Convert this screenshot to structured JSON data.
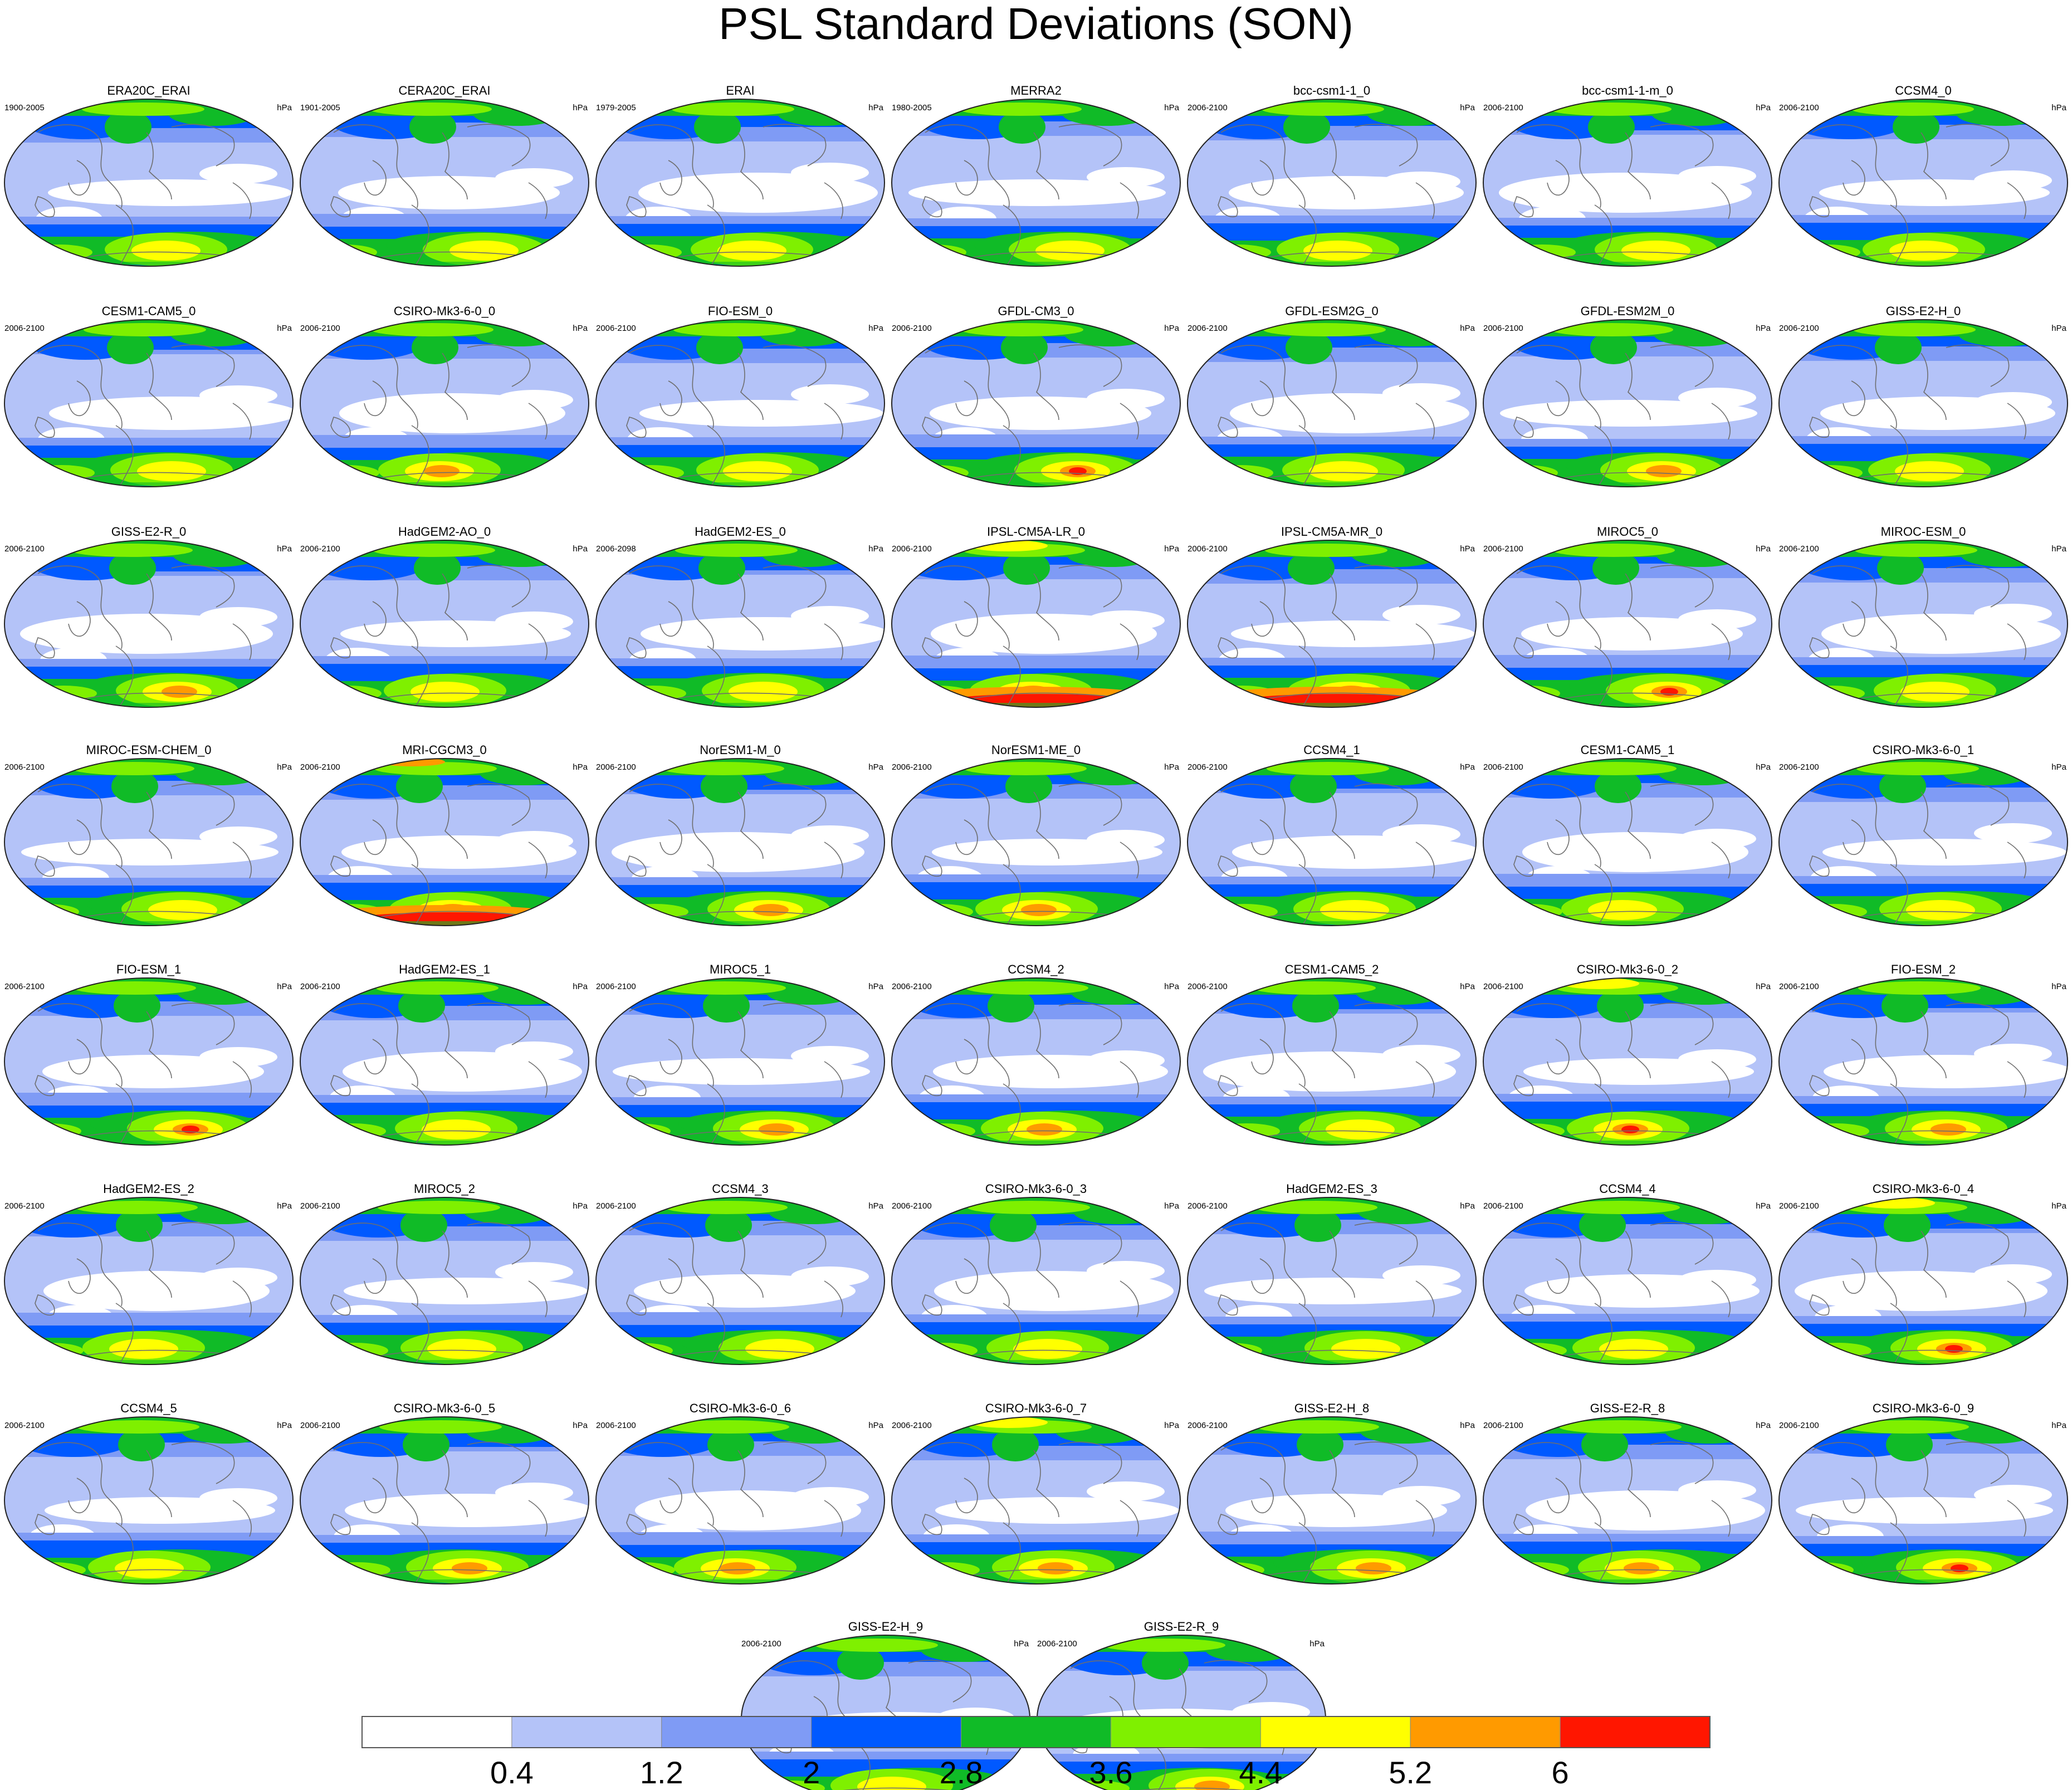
{
  "chart_data": {
    "type": "heatmap",
    "title": "PSL Standard Deviations (SON)",
    "units": "hPa",
    "projection": "robinson-like world maps (panel grid)",
    "colorbar": {
      "position": "bottom",
      "tick_labels": [
        "0.4",
        "1.2",
        "2",
        "2.8",
        "3.6",
        "4.4",
        "5.2",
        "6"
      ],
      "bins": [
        {
          "color": "#ffffff"
        },
        {
          "color": "#b4c3f8"
        },
        {
          "color": "#7f9bf5"
        },
        {
          "color": "#0059ff"
        },
        {
          "color": "#10bb27"
        },
        {
          "color": "#7ff000"
        },
        {
          "color": "#ffff00"
        },
        {
          "color": "#ff9a00"
        },
        {
          "color": "#ff1600"
        }
      ]
    },
    "panels": [
      {
        "name": "ERA20C_ERAI",
        "period": "1900-2005",
        "max_level": 6
      },
      {
        "name": "CERA20C_ERAI",
        "period": "1901-2005",
        "max_level": 6
      },
      {
        "name": "ERAI",
        "period": "1979-2005",
        "max_level": 6
      },
      {
        "name": "MERRA2",
        "period": "1980-2005",
        "max_level": 6
      },
      {
        "name": "bcc-csm1-1_0",
        "period": "2006-2100",
        "max_level": 6
      },
      {
        "name": "bcc-csm1-1-m_0",
        "period": "2006-2100",
        "max_level": 6
      },
      {
        "name": "CCSM4_0",
        "period": "2006-2100",
        "max_level": 6
      },
      {
        "name": "CESM1-CAM5_0",
        "period": "2006-2100",
        "max_level": 6
      },
      {
        "name": "CSIRO-Mk3-6-0_0",
        "period": "2006-2100",
        "max_level": 7
      },
      {
        "name": "FIO-ESM_0",
        "period": "2006-2100",
        "max_level": 6
      },
      {
        "name": "GFDL-CM3_0",
        "period": "2006-2100",
        "max_level": 8
      },
      {
        "name": "GFDL-ESM2G_0",
        "period": "2006-2100",
        "max_level": 6
      },
      {
        "name": "GFDL-ESM2M_0",
        "period": "2006-2100",
        "max_level": 7
      },
      {
        "name": "GISS-E2-H_0",
        "period": "2006-2100",
        "max_level": 6
      },
      {
        "name": "GISS-E2-R_0",
        "period": "2006-2100",
        "max_level": 7
      },
      {
        "name": "HadGEM2-AO_0",
        "period": "2006-2100",
        "max_level": 6
      },
      {
        "name": "HadGEM2-ES_0",
        "period": "2006-2098",
        "max_level": 6
      },
      {
        "name": "IPSL-CM5A-LR_0",
        "period": "2006-2100",
        "max_level": 8
      },
      {
        "name": "IPSL-CM5A-MR_0",
        "period": "2006-2100",
        "max_level": 8
      },
      {
        "name": "MIROC5_0",
        "period": "2006-2100",
        "max_level": 8
      },
      {
        "name": "MIROC-ESM_0",
        "period": "2006-2100",
        "max_level": 6
      },
      {
        "name": "MIROC-ESM-CHEM_0",
        "period": "2006-2100",
        "max_level": 6
      },
      {
        "name": "MRI-CGCM3_0",
        "period": "2006-2100",
        "max_level": 8
      },
      {
        "name": "NorESM1-M_0",
        "period": "2006-2100",
        "max_level": 7
      },
      {
        "name": "NorESM1-ME_0",
        "period": "2006-2100",
        "max_level": 7
      },
      {
        "name": "CCSM4_1",
        "period": "2006-2100",
        "max_level": 6
      },
      {
        "name": "CESM1-CAM5_1",
        "period": "2006-2100",
        "max_level": 6
      },
      {
        "name": "CSIRO-Mk3-6-0_1",
        "period": "2006-2100",
        "max_level": 6
      },
      {
        "name": "FIO-ESM_1",
        "period": "2006-2100",
        "max_level": 8
      },
      {
        "name": "HadGEM2-ES_1",
        "period": "2006-2100",
        "max_level": 6
      },
      {
        "name": "MIROC5_1",
        "period": "2006-2100",
        "max_level": 7
      },
      {
        "name": "CCSM4_2",
        "period": "2006-2100",
        "max_level": 7
      },
      {
        "name": "CESM1-CAM5_2",
        "period": "2006-2100",
        "max_level": 6
      },
      {
        "name": "CSIRO-Mk3-6-0_2",
        "period": "2006-2100",
        "max_level": 8
      },
      {
        "name": "FIO-ESM_2",
        "period": "2006-2100",
        "max_level": 7
      },
      {
        "name": "HadGEM2-ES_2",
        "period": "2006-2100",
        "max_level": 6
      },
      {
        "name": "MIROC5_2",
        "period": "2006-2100",
        "max_level": 6
      },
      {
        "name": "CCSM4_3",
        "period": "2006-2100",
        "max_level": 6
      },
      {
        "name": "CSIRO-Mk3-6-0_3",
        "period": "2006-2100",
        "max_level": 6
      },
      {
        "name": "HadGEM2-ES_3",
        "period": "2006-2100",
        "max_level": 6
      },
      {
        "name": "CCSM4_4",
        "period": "2006-2100",
        "max_level": 6
      },
      {
        "name": "CSIRO-Mk3-6-0_4",
        "period": "2006-2100",
        "max_level": 8
      },
      {
        "name": "CCSM4_5",
        "period": "2006-2100",
        "max_level": 6
      },
      {
        "name": "CSIRO-Mk3-6-0_5",
        "period": "2006-2100",
        "max_level": 7
      },
      {
        "name": "CSIRO-Mk3-6-0_6",
        "period": "2006-2100",
        "max_level": 7
      },
      {
        "name": "CSIRO-Mk3-6-0_7",
        "period": "2006-2100",
        "max_level": 7
      },
      {
        "name": "GISS-E2-H_8",
        "period": "2006-2100",
        "max_level": 7
      },
      {
        "name": "GISS-E2-R_8",
        "period": "2006-2100",
        "max_level": 7
      },
      {
        "name": "CSIRO-Mk3-6-0_9",
        "period": "2006-2100",
        "max_level": 8
      },
      {
        "name": "GISS-E2-H_9",
        "period": "2006-2100",
        "max_level": 6
      },
      {
        "name": "GISS-E2-R_9",
        "period": "2006-2100",
        "max_level": 7
      }
    ]
  }
}
